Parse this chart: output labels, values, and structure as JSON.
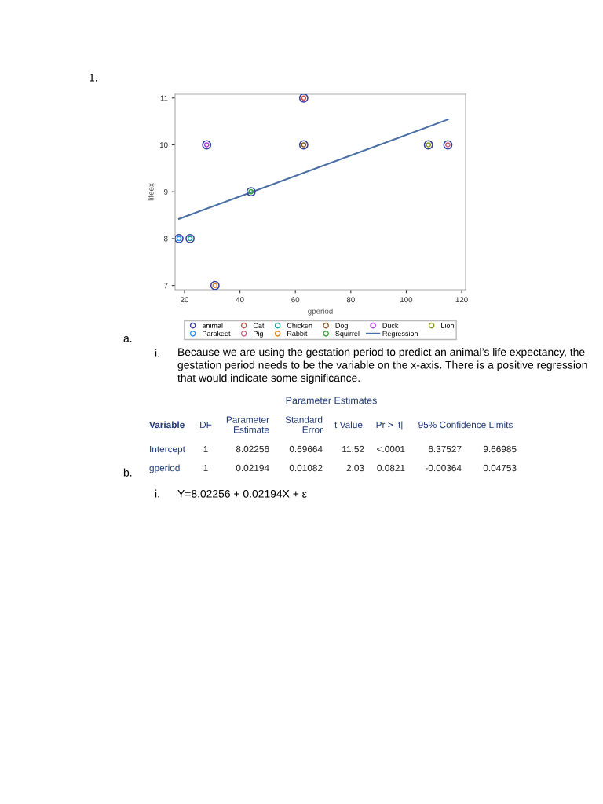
{
  "chart_data": {
    "type": "scatter",
    "xlabel": "gperiod",
    "ylabel": "lifeex",
    "marker": "circle",
    "legend": "bottom",
    "xlim": [
      16.6,
      121.4
    ],
    "xticks": [
      20,
      40,
      60,
      80,
      100,
      120
    ],
    "ylim": [
      6.91,
      11.08
    ],
    "yticks": [
      7,
      8,
      9,
      10,
      11
    ],
    "series": [
      {
        "name": "animal",
        "color": "#34409a",
        "x": [
          18,
          22,
          28,
          31,
          44,
          63,
          63,
          108,
          115
        ],
        "values": [
          8,
          8,
          10,
          7,
          9,
          11,
          10,
          10,
          10
        ]
      },
      {
        "name": "Cat",
        "color": "#d05050",
        "x": [
          63
        ],
        "values": [
          11
        ]
      },
      {
        "name": "Chicken",
        "color": "#2a9d8f",
        "x": [
          22
        ],
        "values": [
          8
        ]
      },
      {
        "name": "Dog",
        "color": "#8b5a2b",
        "x": [
          63
        ],
        "values": [
          10
        ]
      },
      {
        "name": "Duck",
        "color": "#b040e0",
        "x": [
          28
        ],
        "values": [
          10
        ]
      },
      {
        "name": "Lion",
        "color": "#8a9a20",
        "x": [
          108
        ],
        "values": [
          10
        ]
      },
      {
        "name": "Parakeet",
        "color": "#1e90ff",
        "x": [
          18
        ],
        "values": [
          8
        ]
      },
      {
        "name": "Pig",
        "color": "#d06080",
        "x": [
          115
        ],
        "values": [
          10
        ]
      },
      {
        "name": "Rabbit",
        "color": "#e08020",
        "x": [
          31
        ],
        "values": [
          7
        ]
      },
      {
        "name": "Squirrel",
        "color": "#30a030",
        "x": [
          44
        ],
        "values": [
          9
        ]
      },
      {
        "name": "Regression",
        "type": "line",
        "color": "#4a6fa5",
        "x": [
          18,
          115
        ],
        "values": [
          8.42,
          10.54
        ],
        "marker": "none",
        "line_style": "solid"
      }
    ],
    "annotations": [
      "1.",
      "a.",
      "i.",
      "Because we are using the gestation period to predict an animal’s life expectancy, the gestation period needs to be the variable on the x-axis. There is a positive regression that would indicate some significance.",
      "b.",
      "Parameter Estimates",
      "Variable",
      "DF",
      "Parameter\nEstimate",
      "Standard\nError",
      "t Value",
      "Pr > |t|",
      "95% Confidence Limits",
      "Intercept",
      "1",
      "8.02256",
      "0.69664",
      "11.52",
      "<.0001",
      "6.37527",
      "9.66985",
      "gperiod",
      "1",
      "0.02194",
      "0.01082",
      "2.03",
      "0.0821",
      "-0.00364",
      "0.04753",
      "i.",
      "Y=8.02256 + 0.02194X + ε"
    ]
  }
}
